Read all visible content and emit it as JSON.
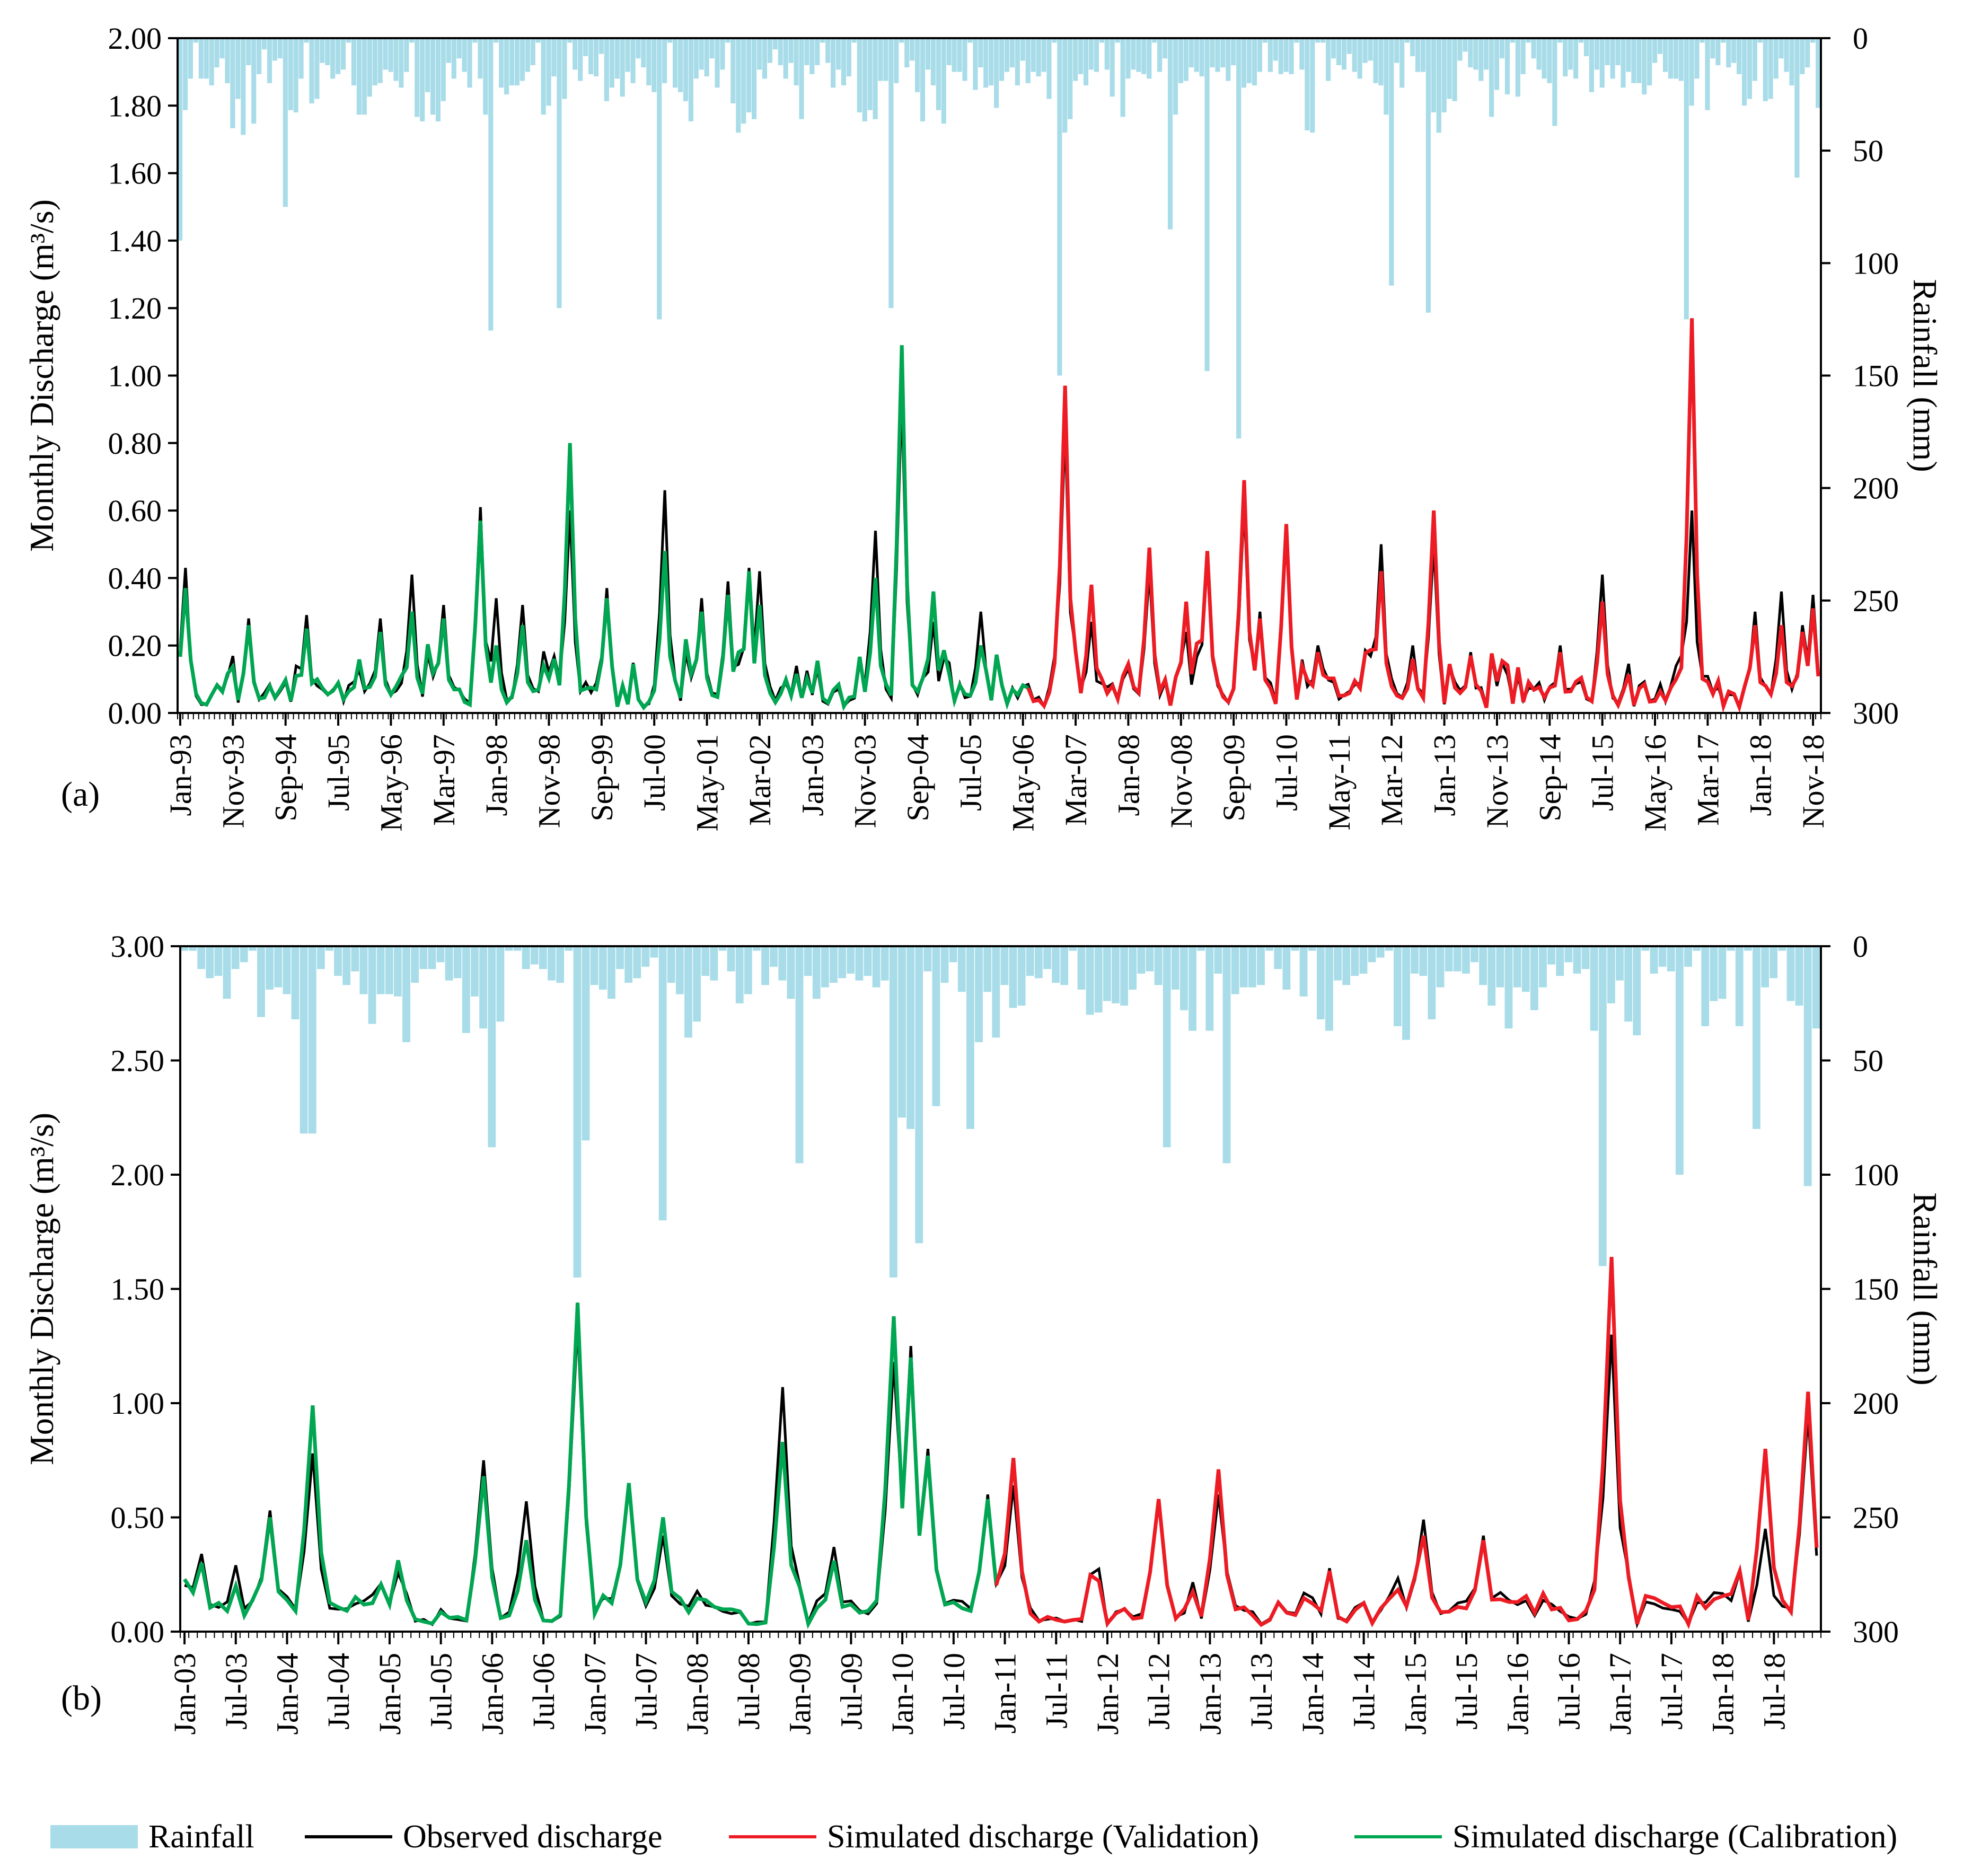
{
  "chart_data": [
    {
      "type": "bar+line",
      "panel_label": "(a)",
      "ylabel": "Monthly Discharge (m³/s)",
      "y2label": "Rainfall (mm)",
      "ylim": [
        0,
        2.0
      ],
      "y2lim": [
        0,
        300
      ],
      "y2_inverted": true,
      "yticks": [
        "0.00",
        "0.20",
        "0.40",
        "0.60",
        "0.80",
        "1.00",
        "1.20",
        "1.40",
        "1.60",
        "1.80",
        "2.00"
      ],
      "y2ticks": [
        "0",
        "50",
        "100",
        "150",
        "200",
        "250",
        "300"
      ],
      "start": "1993-01",
      "months": 312,
      "validation_start_index": 161,
      "xticks": [
        {
          "i": 0,
          "label": "Jan-93"
        },
        {
          "i": 10,
          "label": "Nov-93"
        },
        {
          "i": 20,
          "label": "Sep-94"
        },
        {
          "i": 30,
          "label": "Jul-95"
        },
        {
          "i": 40,
          "label": "May-96"
        },
        {
          "i": 50,
          "label": "Mar-97"
        },
        {
          "i": 60,
          "label": "Jan-98"
        },
        {
          "i": 70,
          "label": "Nov-98"
        },
        {
          "i": 80,
          "label": "Sep-99"
        },
        {
          "i": 90,
          "label": "Jul-00"
        },
        {
          "i": 100,
          "label": "May-01"
        },
        {
          "i": 110,
          "label": "Mar-02"
        },
        {
          "i": 120,
          "label": "Jan-03"
        },
        {
          "i": 130,
          "label": "Nov-03"
        },
        {
          "i": 140,
          "label": "Sep-04"
        },
        {
          "i": 150,
          "label": "Jul-05"
        },
        {
          "i": 160,
          "label": "May-06"
        },
        {
          "i": 170,
          "label": "Mar-07"
        },
        {
          "i": 180,
          "label": "Jan-08"
        },
        {
          "i": 190,
          "label": "Nov-08"
        },
        {
          "i": 200,
          "label": "Sep-09"
        },
        {
          "i": 210,
          "label": "Jul-10"
        },
        {
          "i": 220,
          "label": "May-11"
        },
        {
          "i": 230,
          "label": "Mar-12"
        },
        {
          "i": 240,
          "label": "Jan-13"
        },
        {
          "i": 250,
          "label": "Nov-13"
        },
        {
          "i": 260,
          "label": "Sep-14"
        },
        {
          "i": 270,
          "label": "Jul-15"
        },
        {
          "i": 280,
          "label": "May-16"
        },
        {
          "i": 290,
          "label": "Mar-17"
        },
        {
          "i": 300,
          "label": "Jan-18"
        },
        {
          "i": 310,
          "label": "Nov-18"
        }
      ],
      "rain_peaks": [
        [
          0,
          90
        ],
        [
          10,
          40
        ],
        [
          20,
          75
        ],
        [
          59,
          130
        ],
        [
          72,
          120
        ],
        [
          91,
          125
        ],
        [
          135,
          120
        ],
        [
          167,
          150
        ],
        [
          188,
          85
        ],
        [
          195,
          148
        ],
        [
          201,
          178
        ],
        [
          230,
          110
        ],
        [
          237,
          122
        ],
        [
          286,
          125
        ],
        [
          307,
          62
        ]
      ],
      "observed_peaks": [
        [
          1,
          0.43
        ],
        [
          13,
          0.28
        ],
        [
          24,
          0.29
        ],
        [
          38,
          0.28
        ],
        [
          44,
          0.41
        ],
        [
          50,
          0.32
        ],
        [
          57,
          0.61
        ],
        [
          60,
          0.34
        ],
        [
          65,
          0.32
        ],
        [
          74,
          0.6
        ],
        [
          81,
          0.37
        ],
        [
          92,
          0.66
        ],
        [
          99,
          0.34
        ],
        [
          104,
          0.39
        ],
        [
          108,
          0.43
        ],
        [
          110,
          0.42
        ],
        [
          132,
          0.54
        ],
        [
          137,
          0.94
        ],
        [
          143,
          0.27
        ],
        [
          152,
          0.3
        ],
        [
          168,
          0.85
        ],
        [
          173,
          0.27
        ],
        [
          184,
          0.42
        ],
        [
          191,
          0.24
        ],
        [
          195,
          0.45
        ],
        [
          202,
          0.62
        ],
        [
          205,
          0.3
        ],
        [
          210,
          0.55
        ],
        [
          216,
          0.2
        ],
        [
          228,
          0.5
        ],
        [
          234,
          0.2
        ],
        [
          238,
          0.5
        ],
        [
          245,
          0.18
        ],
        [
          262,
          0.2
        ],
        [
          270,
          0.41
        ],
        [
          284,
          0.14
        ],
        [
          287,
          0.6
        ],
        [
          299,
          0.3
        ],
        [
          304,
          0.36
        ],
        [
          308,
          0.26
        ],
        [
          310,
          0.35
        ]
      ],
      "simulated_peaks": [
        [
          1,
          0.37
        ],
        [
          13,
          0.26
        ],
        [
          24,
          0.25
        ],
        [
          38,
          0.24
        ],
        [
          44,
          0.3
        ],
        [
          50,
          0.28
        ],
        [
          57,
          0.57
        ],
        [
          60,
          0.2
        ],
        [
          65,
          0.26
        ],
        [
          74,
          0.8
        ],
        [
          81,
          0.34
        ],
        [
          92,
          0.48
        ],
        [
          99,
          0.3
        ],
        [
          104,
          0.35
        ],
        [
          108,
          0.42
        ],
        [
          110,
          0.32
        ],
        [
          132,
          0.4
        ],
        [
          137,
          1.09
        ],
        [
          143,
          0.36
        ],
        [
          152,
          0.2
        ],
        [
          168,
          0.97
        ],
        [
          173,
          0.38
        ],
        [
          184,
          0.49
        ],
        [
          191,
          0.33
        ],
        [
          195,
          0.48
        ],
        [
          202,
          0.69
        ],
        [
          205,
          0.28
        ],
        [
          210,
          0.56
        ],
        [
          216,
          0.18
        ],
        [
          228,
          0.42
        ],
        [
          234,
          0.16
        ],
        [
          238,
          0.6
        ],
        [
          245,
          0.17
        ],
        [
          262,
          0.18
        ],
        [
          270,
          0.33
        ],
        [
          284,
          0.1
        ],
        [
          287,
          1.17
        ],
        [
          299,
          0.26
        ],
        [
          304,
          0.26
        ],
        [
          308,
          0.24
        ],
        [
          310,
          0.31
        ]
      ],
      "series": [
        {
          "name": "Rainfall",
          "color": "#a8dce8"
        },
        {
          "name": "Observed discharge",
          "color": "#000000"
        },
        {
          "name": "Simulated discharge (Calibration)",
          "color": "#00a651"
        },
        {
          "name": "Simulated discharge (Validation)",
          "color": "#ed1c24"
        }
      ]
    },
    {
      "type": "bar+line",
      "panel_label": "(b)",
      "ylabel": "Monthly Discharge (m³/s)",
      "y2label": "Rainfall (mm)",
      "ylim": [
        0,
        3.0
      ],
      "y2lim": [
        0,
        300
      ],
      "y2_inverted": true,
      "yticks": [
        "0.00",
        "0.50",
        "1.00",
        "1.50",
        "2.00",
        "2.50",
        "3.00"
      ],
      "y2ticks": [
        "0",
        "50",
        "100",
        "150",
        "200",
        "250",
        "300"
      ],
      "start": "2003-01",
      "months": 192,
      "validation_start_index": 95,
      "xticks": [
        {
          "i": 0,
          "label": "Jan-03"
        },
        {
          "i": 6,
          "label": "Jul-03"
        },
        {
          "i": 12,
          "label": "Jan-04"
        },
        {
          "i": 18,
          "label": "Jul-04"
        },
        {
          "i": 24,
          "label": "Jan-05"
        },
        {
          "i": 30,
          "label": "Jul-05"
        },
        {
          "i": 36,
          "label": "Jan-06"
        },
        {
          "i": 42,
          "label": "Jul-06"
        },
        {
          "i": 48,
          "label": "Jan-07"
        },
        {
          "i": 54,
          "label": "Jul-07"
        },
        {
          "i": 60,
          "label": "Jan-08"
        },
        {
          "i": 66,
          "label": "Jul-08"
        },
        {
          "i": 72,
          "label": "Jan-09"
        },
        {
          "i": 78,
          "label": "Jul-09"
        },
        {
          "i": 84,
          "label": "Jan-10"
        },
        {
          "i": 90,
          "label": "Jul-10"
        },
        {
          "i": 96,
          "label": "Jan-11"
        },
        {
          "i": 102,
          "label": "Jul-11"
        },
        {
          "i": 108,
          "label": "Jan-12"
        },
        {
          "i": 114,
          "label": "Jul-12"
        },
        {
          "i": 120,
          "label": "Jan-13"
        },
        {
          "i": 126,
          "label": "Jul-13"
        },
        {
          "i": 132,
          "label": "Jan-14"
        },
        {
          "i": 138,
          "label": "Jul-14"
        },
        {
          "i": 144,
          "label": "Jan-15"
        },
        {
          "i": 150,
          "label": "Jul-15"
        },
        {
          "i": 156,
          "label": "Jan-16"
        },
        {
          "i": 162,
          "label": "Jul-16"
        },
        {
          "i": 168,
          "label": "Jan-17"
        },
        {
          "i": 174,
          "label": "Jul-17"
        },
        {
          "i": 180,
          "label": "Jan-18"
        },
        {
          "i": 186,
          "label": "Jul-18"
        }
      ],
      "rain_peaks": [
        [
          14,
          82
        ],
        [
          15,
          82
        ],
        [
          36,
          88
        ],
        [
          46,
          145
        ],
        [
          47,
          85
        ],
        [
          56,
          120
        ],
        [
          72,
          95
        ],
        [
          83,
          145
        ],
        [
          84,
          75
        ],
        [
          85,
          80
        ],
        [
          86,
          130
        ],
        [
          88,
          70
        ],
        [
          92,
          80
        ],
        [
          115,
          88
        ],
        [
          122,
          95
        ],
        [
          166,
          140
        ],
        [
          175,
          100
        ],
        [
          184,
          80
        ],
        [
          190,
          105
        ]
      ],
      "observed_peaks": [
        [
          2,
          0.34
        ],
        [
          6,
          0.29
        ],
        [
          10,
          0.53
        ],
        [
          15,
          0.78
        ],
        [
          35,
          0.75
        ],
        [
          40,
          0.57
        ],
        [
          46,
          1.35
        ],
        [
          52,
          0.63
        ],
        [
          56,
          0.42
        ],
        [
          70,
          1.07
        ],
        [
          76,
          0.37
        ],
        [
          83,
          1.18
        ],
        [
          85,
          1.25
        ],
        [
          87,
          0.8
        ],
        [
          94,
          0.6
        ],
        [
          97,
          0.64
        ],
        [
          114,
          0.58
        ],
        [
          121,
          0.6
        ],
        [
          145,
          0.49
        ],
        [
          152,
          0.42
        ],
        [
          167,
          1.3
        ],
        [
          185,
          0.45
        ],
        [
          190,
          0.95
        ]
      ],
      "simulated_peaks": [
        [
          2,
          0.3
        ],
        [
          6,
          0.2
        ],
        [
          10,
          0.5
        ],
        [
          15,
          0.99
        ],
        [
          35,
          0.68
        ],
        [
          40,
          0.4
        ],
        [
          46,
          1.44
        ],
        [
          52,
          0.65
        ],
        [
          56,
          0.5
        ],
        [
          70,
          0.83
        ],
        [
          76,
          0.31
        ],
        [
          83,
          1.38
        ],
        [
          85,
          1.2
        ],
        [
          87,
          0.77
        ],
        [
          94,
          0.58
        ],
        [
          97,
          0.76
        ],
        [
          114,
          0.58
        ],
        [
          121,
          0.71
        ],
        [
          145,
          0.42
        ],
        [
          152,
          0.4
        ],
        [
          167,
          1.64
        ],
        [
          185,
          0.8
        ],
        [
          190,
          1.05
        ]
      ],
      "series": [
        {
          "name": "Rainfall",
          "color": "#a8dce8"
        },
        {
          "name": "Observed discharge",
          "color": "#000000"
        },
        {
          "name": "Simulated discharge (Calibration)",
          "color": "#00a651"
        },
        {
          "name": "Simulated discharge (Validation)",
          "color": "#ed1c24"
        }
      ]
    }
  ],
  "legend": [
    {
      "label": "Rainfall",
      "color": "#a8dce8",
      "style": "bar"
    },
    {
      "label": "Observed discharge",
      "color": "#000000",
      "style": "line"
    },
    {
      "label": "Simulated discharge (Validation)",
      "color": "#ed1c24",
      "style": "line"
    },
    {
      "label": "Simulated discharge (Calibration)",
      "color": "#00a651",
      "style": "line"
    }
  ]
}
